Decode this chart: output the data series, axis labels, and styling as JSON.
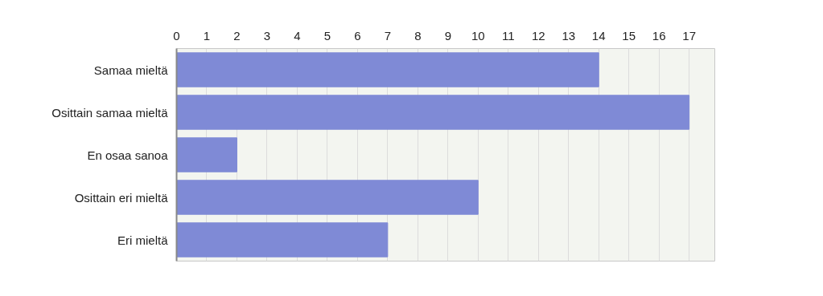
{
  "chart_data": {
    "type": "bar",
    "orientation": "horizontal",
    "categories": [
      "Samaa mieltä",
      "Osittain samaa mieltä",
      "En osaa sanoa",
      "Osittain eri mieltä",
      "Eri mieltä"
    ],
    "values": [
      14,
      17,
      2,
      10,
      7
    ],
    "color": "#7f8ad6",
    "xlim": [
      0,
      17.85
    ],
    "xticks": [
      0,
      1,
      2,
      3,
      4,
      5,
      6,
      7,
      8,
      9,
      10,
      11,
      12,
      13,
      14,
      15,
      16,
      17
    ],
    "grid": "x"
  }
}
